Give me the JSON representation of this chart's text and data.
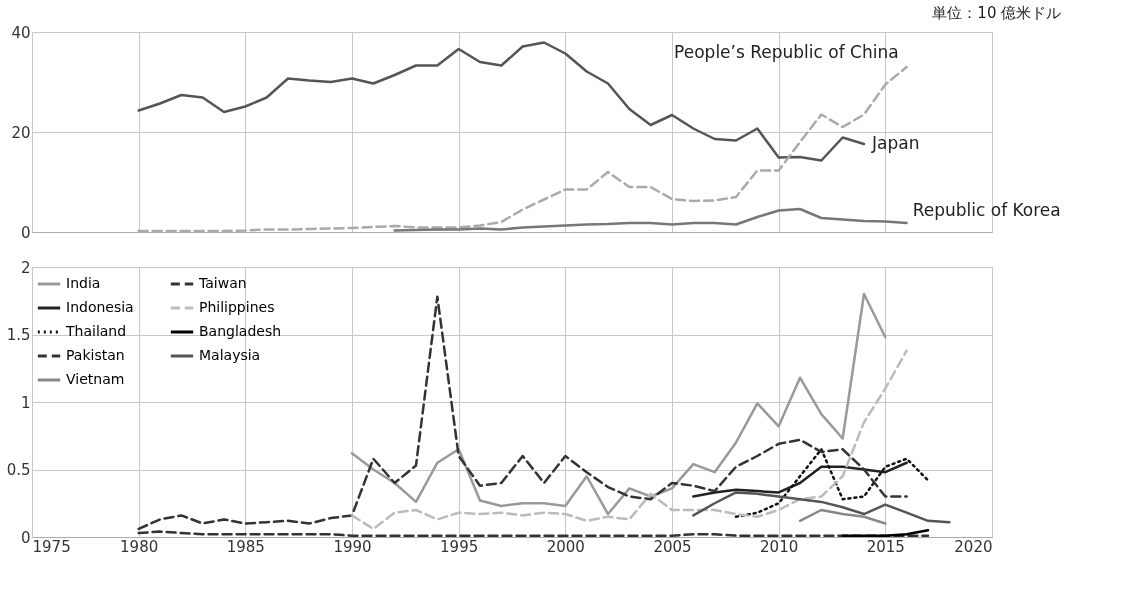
{
  "chart_data": [
    {
      "type": "line",
      "annotations": [
        "単位：10 億米ドル"
      ],
      "xlim": [
        1975,
        2020
      ],
      "xticks": [
        1975,
        1980,
        1985,
        1990,
        1995,
        2000,
        2005,
        2010,
        2015,
        2020
      ],
      "ylim": [
        0,
        40
      ],
      "yticks": [
        0,
        20,
        40
      ],
      "grid": true,
      "tick_labels": "y",
      "series": [
        {
          "name": "Japan",
          "color": "#555555",
          "line_style": "solid",
          "x": [
            1980,
            1981,
            1982,
            1983,
            1984,
            1985,
            1986,
            1987,
            1988,
            1989,
            1990,
            1991,
            1992,
            1993,
            1994,
            1995,
            1996,
            1997,
            1998,
            1999,
            2000,
            2001,
            2002,
            2003,
            2004,
            2005,
            2006,
            2007,
            2008,
            2009,
            2010,
            2011,
            2012,
            2013,
            2014
          ],
          "values": [
            24.3,
            25.7,
            27.4,
            26.9,
            24.0,
            25.1,
            26.9,
            30.7,
            30.3,
            30.0,
            30.7,
            29.7,
            31.4,
            33.3,
            33.3,
            36.6,
            34.0,
            33.3,
            37.1,
            37.9,
            35.7,
            32.1,
            29.7,
            24.6,
            21.4,
            23.4,
            20.7,
            18.6,
            18.3,
            20.7,
            14.9,
            15.0,
            14.3,
            18.9,
            17.6
          ]
        },
        {
          "name": "People’s Republic of China",
          "color": "#aaaaaa",
          "line_style": "dashed",
          "x": [
            1980,
            1981,
            1982,
            1983,
            1984,
            1985,
            1986,
            1987,
            1988,
            1989,
            1990,
            1991,
            1992,
            1993,
            1994,
            1995,
            1996,
            1997,
            1998,
            1999,
            2000,
            2001,
            2002,
            2003,
            2004,
            2005,
            2006,
            2007,
            2008,
            2009,
            2010,
            2011,
            2012,
            2013,
            2014,
            2015,
            2016
          ],
          "values": [
            0.2,
            0.2,
            0.2,
            0.2,
            0.2,
            0.3,
            0.5,
            0.5,
            0.6,
            0.7,
            0.8,
            1.0,
            1.2,
            0.9,
            0.9,
            0.9,
            1.3,
            2.0,
            4.5,
            6.5,
            8.5,
            8.5,
            12.0,
            9.0,
            9.0,
            6.6,
            6.2,
            6.3,
            7.0,
            12.3,
            12.3,
            18.0,
            23.5,
            21.0,
            23.5,
            29.5,
            33.0
          ]
        },
        {
          "name": "Republic of Korea",
          "color": "#777777",
          "line_style": "solid",
          "x": [
            1992,
            1993,
            1994,
            1995,
            1996,
            1997,
            1998,
            1999,
            2000,
            2001,
            2002,
            2003,
            2004,
            2005,
            2006,
            2007,
            2008,
            2009,
            2010,
            2011,
            2012,
            2013,
            2014,
            2015,
            2016
          ],
          "values": [
            0.3,
            0.4,
            0.5,
            0.5,
            0.7,
            0.5,
            0.9,
            1.1,
            1.3,
            1.5,
            1.6,
            1.8,
            1.8,
            1.5,
            1.8,
            1.8,
            1.5,
            3.0,
            4.3,
            4.6,
            2.8,
            2.5,
            2.2,
            2.1,
            1.8
          ]
        }
      ]
    },
    {
      "type": "line",
      "xlim": [
        1975,
        2020
      ],
      "xticks": [
        1975,
        1980,
        1985,
        1990,
        1995,
        2000,
        2005,
        2010,
        2015,
        2020
      ],
      "ylim": [
        0,
        2
      ],
      "yticks": [
        0,
        0.5,
        1,
        1.5,
        2
      ],
      "grid": true,
      "legend": "top left",
      "series": [
        {
          "name": "India",
          "color": "#999999",
          "line_style": "solid",
          "x": [
            1990,
            1991,
            1992,
            1993,
            1994,
            1995,
            1996,
            1997,
            1998,
            1999,
            2000,
            2001,
            2002,
            2003,
            2004,
            2005,
            2006,
            2007,
            2008,
            2009,
            2010,
            2011,
            2012,
            2013,
            2014,
            2015
          ],
          "values": [
            0.62,
            0.5,
            0.4,
            0.26,
            0.55,
            0.65,
            0.27,
            0.23,
            0.25,
            0.25,
            0.23,
            0.45,
            0.17,
            0.36,
            0.3,
            0.36,
            0.54,
            0.48,
            0.7,
            0.99,
            0.82,
            1.18,
            0.91,
            0.73,
            1.8,
            1.48
          ]
        },
        {
          "name": "Indonesia",
          "color": "#222222",
          "line_style": "solid",
          "x": [
            2006,
            2007,
            2008,
            2009,
            2010,
            2011,
            2012,
            2013,
            2014,
            2015,
            2016
          ],
          "values": [
            0.3,
            0.33,
            0.35,
            0.34,
            0.33,
            0.4,
            0.52,
            0.52,
            0.5,
            0.48,
            0.55
          ]
        },
        {
          "name": "Thailand",
          "color": "#111111",
          "line_style": "dotted",
          "x": [
            2008,
            2009,
            2010,
            2011,
            2012,
            2013,
            2014,
            2015,
            2016,
            2017
          ],
          "values": [
            0.15,
            0.18,
            0.25,
            0.45,
            0.65,
            0.28,
            0.3,
            0.52,
            0.58,
            0.42
          ]
        },
        {
          "name": "Pakistan",
          "color": "#333333",
          "line_style": "dashed",
          "x": [
            1980,
            1981,
            1982,
            1983,
            1984,
            1985,
            1986,
            1987,
            1988,
            1989,
            1990,
            1991,
            1992,
            1993,
            1994,
            1995,
            1996,
            1997,
            1998,
            1999,
            2000,
            2001,
            2002,
            2003,
            2004,
            2005,
            2006,
            2007,
            2008,
            2009,
            2010,
            2011,
            2012,
            2013,
            2014,
            2015,
            2016,
            2017
          ],
          "values": [
            0.03,
            0.04,
            0.03,
            0.02,
            0.02,
            0.02,
            0.02,
            0.02,
            0.02,
            0.02,
            0.01,
            0.01,
            0.01,
            0.01,
            0.01,
            0.01,
            0.01,
            0.01,
            0.01,
            0.01,
            0.01,
            0.01,
            0.01,
            0.01,
            0.01,
            0.01,
            0.02,
            0.02,
            0.01,
            0.01,
            0.01,
            0.01,
            0.01,
            0.01,
            0.01,
            0.01,
            0.01,
            0.01
          ]
        },
        {
          "name": "Vietnam",
          "color": "#888888",
          "line_style": "solid",
          "x": [
            2011,
            2012,
            2013,
            2014,
            2015
          ],
          "values": [
            0.12,
            0.2,
            0.17,
            0.15,
            0.1
          ]
        },
        {
          "name": "Taiwan",
          "color": "#333333",
          "line_style": "dashed",
          "x": [
            1980,
            1981,
            1982,
            1983,
            1984,
            1985,
            1986,
            1987,
            1988,
            1989,
            1990,
            1991,
            1992,
            1993,
            1994,
            1995,
            1996,
            1997,
            1998,
            1999,
            2000,
            2001,
            2002,
            2003,
            2004,
            2005,
            2006,
            2007,
            2008,
            2009,
            2010,
            2011,
            2012,
            2013,
            2014,
            2015,
            2016
          ],
          "values": [
            0.06,
            0.13,
            0.16,
            0.1,
            0.13,
            0.1,
            0.11,
            0.12,
            0.1,
            0.14,
            0.16,
            0.58,
            0.4,
            0.53,
            1.78,
            0.6,
            0.38,
            0.4,
            0.6,
            0.4,
            0.6,
            0.48,
            0.37,
            0.3,
            0.28,
            0.4,
            0.38,
            0.34,
            0.52,
            0.6,
            0.69,
            0.72,
            0.63,
            0.65,
            0.5,
            0.3,
            0.3
          ]
        },
        {
          "name": "Philippines",
          "color": "#bbbbbb",
          "line_style": "dashed",
          "x": [
            1990,
            1991,
            1992,
            1993,
            1994,
            1995,
            1996,
            1997,
            1998,
            1999,
            2000,
            2001,
            2002,
            2003,
            2004,
            2005,
            2006,
            2007,
            2008,
            2009,
            2010,
            2011,
            2012,
            2013,
            2014,
            2015,
            2016
          ],
          "values": [
            0.16,
            0.06,
            0.18,
            0.2,
            0.13,
            0.18,
            0.17,
            0.18,
            0.16,
            0.18,
            0.17,
            0.12,
            0.15,
            0.13,
            0.32,
            0.2,
            0.2,
            0.2,
            0.17,
            0.15,
            0.2,
            0.28,
            0.3,
            0.45,
            0.85,
            1.1,
            1.38
          ]
        },
        {
          "name": "Bangladesh",
          "color": "#000000",
          "line_style": "solid",
          "x": [
            2013,
            2014,
            2015,
            2016,
            2017
          ],
          "values": [
            0.01,
            0.01,
            0.01,
            0.02,
            0.05
          ]
        },
        {
          "name": "Malaysia",
          "color": "#555555",
          "line_style": "solid",
          "x": [
            2006,
            2007,
            2008,
            2009,
            2010,
            2011,
            2012,
            2013,
            2014,
            2015,
            2016,
            2017,
            2018
          ],
          "values": [
            0.16,
            0.25,
            0.33,
            0.32,
            0.3,
            0.28,
            0.26,
            0.22,
            0.17,
            0.24,
            0.18,
            0.12,
            0.11
          ]
        }
      ]
    }
  ]
}
